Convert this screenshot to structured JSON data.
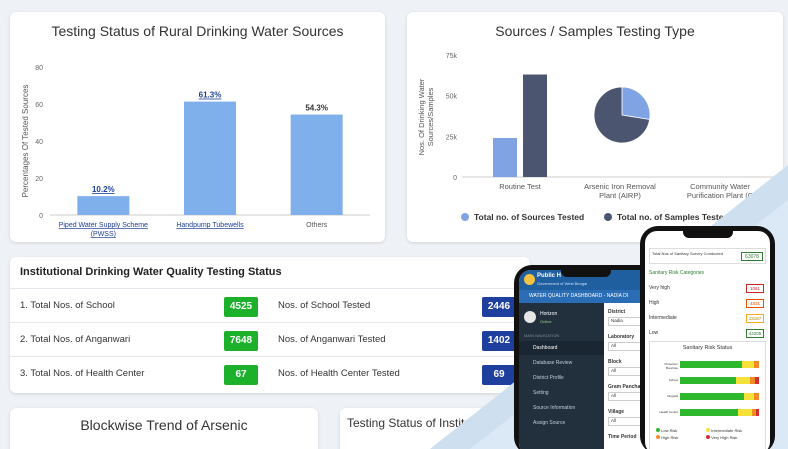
{
  "chart1": {
    "title": "Testing Status of Rural Drinking Water Sources",
    "ylabel": "Percentages Of Tested Sources",
    "y_ticks": [
      "0",
      "20",
      "40",
      "60",
      "80"
    ],
    "categories": [
      "Piped Water Supply Scheme (PWSS)",
      "Handpump Tubewells",
      "Others"
    ],
    "cat_lines": [
      [
        "Piped Water Supply Scheme",
        "(PWSS)"
      ],
      [
        "Handpump Tubewells"
      ],
      [
        "Others"
      ]
    ],
    "labels": [
      "10.2%",
      "61.3%",
      "54.3%"
    ]
  },
  "chart_data": [
    {
      "type": "bar",
      "title": "Testing Status of Rural Drinking Water Sources",
      "ylabel": "Percentages Of Tested Sources",
      "categories": [
        "Piped Water Supply Scheme (PWSS)",
        "Handpump Tubewells",
        "Others"
      ],
      "values": [
        10.2,
        61.3,
        54.3
      ],
      "ylim": [
        0,
        80
      ],
      "color": "#7fb0ec"
    },
    {
      "type": "bar",
      "title": "Sources / Samples Testing Type",
      "ylabel": "Nos. Of Drinking Water Sources/Samples",
      "categories": [
        "Routine Test",
        "Arsenic Iron Removal Plant (AIRP)",
        "Community Water Purification Plant (CWPP)"
      ],
      "series": [
        {
          "name": "Total no. of Sources Tested",
          "values": [
            24000,
            null,
            null
          ],
          "color": "#7fa3e3"
        },
        {
          "name": "Total no. of Samples Tested",
          "values": [
            63000,
            null,
            null
          ],
          "color": "#4c5570"
        }
      ],
      "pie": [
        {
          "name": "Total no. of Sources Tested",
          "value": 24000,
          "color": "#7fa3e3"
        },
        {
          "name": "Total no. of Samples Tested",
          "value": 63000,
          "color": "#4c5570"
        }
      ],
      "ylim": [
        0,
        75000
      ],
      "legend": "bottom"
    }
  ],
  "chart2": {
    "title": "Sources / Samples Testing Type",
    "ylabel_lines": [
      "Nos. Of Drinking Water",
      "Sources/Samples"
    ],
    "y_ticks": [
      "0",
      "25k",
      "50k",
      "75k"
    ],
    "cat_lines": [
      [
        "Routine Test"
      ],
      [
        "Arsenic Iron Removal",
        "Plant (AIRP)"
      ],
      [
        "Community Water",
        "Purification Plant (C"
      ]
    ],
    "legend": [
      "Total no. of Sources Tested",
      "Total no. of Samples Tested"
    ]
  },
  "institutional": {
    "title": "Institutional Drinking Water Quality Testing Status",
    "rows": [
      {
        "label": "1. Total Nos. of School",
        "total": "4525",
        "tested_label": "Nos. of School Tested",
        "tested": "2446"
      },
      {
        "label": "2. Total Nos. of Anganwari",
        "total": "7648",
        "tested_label": "Nos. of Anganwari Tested",
        "tested": "1402"
      },
      {
        "label": "3. Total Nos. of Health Center",
        "total": "67",
        "tested_label": "Nos. of Health Center Tested",
        "tested": "69"
      }
    ]
  },
  "bottom": {
    "arsenic_title": "Blockwise Trend of Arsenic",
    "testing_title": "Testing Status of Institut"
  },
  "phone_left": {
    "brand": "Public H",
    "brand_sub": "Government of West Bengal",
    "header": "WATER QUALITY DASHBOARD - NADIA DI",
    "user_name": "Horizon",
    "user_status": "Online",
    "nav_heading": "MAIN NAVIGATION",
    "nav": [
      "Dashboard",
      "Database Review",
      "District Profile",
      "Setting",
      "Source Information",
      "Assign Source"
    ],
    "filters": [
      {
        "label": "District",
        "value": "Nadia"
      },
      {
        "label": "Laboratory",
        "value": "All"
      },
      {
        "label": "Block",
        "value": "All"
      },
      {
        "label": "Gram Panchay",
        "value": "All"
      },
      {
        "label": "Village",
        "value": "All"
      },
      {
        "label": "Time Period",
        "value": ""
      }
    ]
  },
  "phone_right": {
    "total_label": "Total Nos of Sanitary Survey Conducted",
    "total_value": "63078",
    "section": "Sanitary Risk Categories",
    "risk": [
      {
        "label": "Very high",
        "value": "1061"
      },
      {
        "label": "High",
        "value": "4831"
      },
      {
        "label": "Intermediate",
        "value": "13187"
      },
      {
        "label": "Low",
        "value": "44205"
      }
    ],
    "chart_title": "Sanitary Risk Status",
    "bar_labels": [
      "Protection Borehole",
      "School",
      "Dugwell",
      "Health Centre"
    ],
    "legend": [
      "Low Risk",
      "Intermediate Risk",
      "High Risk",
      "Very High Risk"
    ]
  }
}
